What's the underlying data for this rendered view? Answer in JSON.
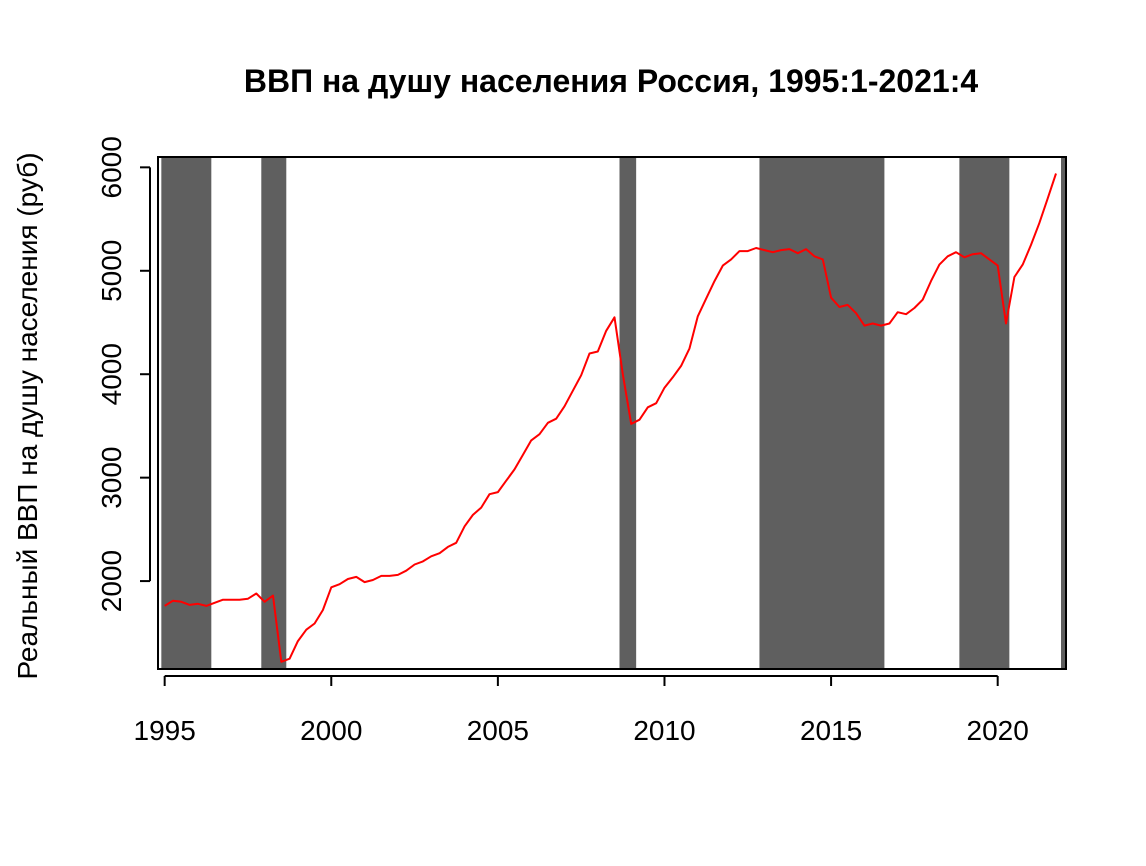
{
  "chart_data": {
    "type": "line",
    "title": "ВВП на душу населения Россия, 1995:1-2021:4",
    "xlabel": "",
    "ylabel": "Реальный ВВП на душу населения (руб)",
    "xlim": [
      1994.8,
      2022.05
    ],
    "ylim": [
      1150,
      6100
    ],
    "x_ticks": [
      1995,
      2000,
      2005,
      2010,
      2015,
      2020
    ],
    "y_ticks": [
      2000,
      3000,
      4000,
      5000,
      6000
    ],
    "grid": false,
    "recession_shading": {
      "color": "#5f5f5f",
      "periods": [
        [
          1994.9,
          1996.4
        ],
        [
          1997.9,
          1998.65
        ],
        [
          2008.65,
          2009.15
        ],
        [
          2012.85,
          2016.6
        ],
        [
          2018.85,
          2020.35
        ],
        [
          2021.9,
          2022.05
        ]
      ]
    },
    "series": [
      {
        "color": "#ff0000",
        "x": [
          1995.0,
          1995.25,
          1995.5,
          1995.75,
          1996.0,
          1996.25,
          1996.5,
          1996.75,
          1997.0,
          1997.25,
          1997.5,
          1997.75,
          1998.0,
          1998.25,
          1998.5,
          1998.75,
          1999.0,
          1999.25,
          1999.5,
          1999.75,
          2000.0,
          2000.25,
          2000.5,
          2000.75,
          2001.0,
          2001.25,
          2001.5,
          2001.75,
          2002.0,
          2002.25,
          2002.5,
          2002.75,
          2003.0,
          2003.25,
          2003.5,
          2003.75,
          2004.0,
          2004.25,
          2004.5,
          2004.75,
          2005.0,
          2005.25,
          2005.5,
          2005.75,
          2006.0,
          2006.25,
          2006.5,
          2006.75,
          2007.0,
          2007.25,
          2007.5,
          2007.75,
          2008.0,
          2008.25,
          2008.5,
          2008.75,
          2009.0,
          2009.25,
          2009.5,
          2009.75,
          2010.0,
          2010.25,
          2010.5,
          2010.75,
          2011.0,
          2011.25,
          2011.5,
          2011.75,
          2012.0,
          2012.25,
          2012.5,
          2012.75,
          2013.0,
          2013.25,
          2013.5,
          2013.75,
          2014.0,
          2014.25,
          2014.5,
          2014.75,
          2015.0,
          2015.25,
          2015.5,
          2015.75,
          2016.0,
          2016.25,
          2016.5,
          2016.75,
          2017.0,
          2017.25,
          2017.5,
          2017.75,
          2018.0,
          2018.25,
          2018.5,
          2018.75,
          2019.0,
          2019.25,
          2019.5,
          2019.75,
          2020.0,
          2020.25,
          2020.5,
          2020.75,
          2021.0,
          2021.25,
          2021.5,
          2021.75
        ],
        "values": [
          1760,
          1810,
          1800,
          1770,
          1780,
          1760,
          1790,
          1820,
          1820,
          1820,
          1830,
          1880,
          1800,
          1860,
          1220,
          1250,
          1420,
          1530,
          1590,
          1720,
          1940,
          1970,
          2020,
          2040,
          1990,
          2010,
          2050,
          2050,
          2060,
          2100,
          2160,
          2190,
          2240,
          2270,
          2330,
          2370,
          2530,
          2640,
          2710,
          2840,
          2860,
          2970,
          3080,
          3220,
          3360,
          3420,
          3530,
          3570,
          3690,
          3840,
          3990,
          4200,
          4220,
          4420,
          4550,
          4000,
          3520,
          3560,
          3680,
          3720,
          3870,
          3970,
          4080,
          4250,
          4560,
          4730,
          4900,
          5050,
          5110,
          5190,
          5190,
          5220,
          5200,
          5180,
          5200,
          5210,
          5170,
          5210,
          5140,
          5110,
          4740,
          4650,
          4670,
          4590,
          4470,
          4490,
          4470,
          4490,
          4600,
          4580,
          4640,
          4720,
          4900,
          5060,
          5140,
          5180,
          5130,
          5160,
          5170,
          5110,
          5050,
          4490,
          4940,
          5060,
          5250,
          5460,
          5700,
          5940
        ]
      }
    ]
  }
}
